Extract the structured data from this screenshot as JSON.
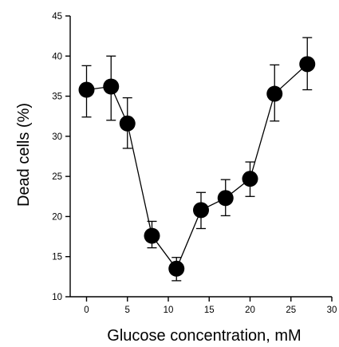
{
  "chart_data": {
    "type": "scatter",
    "title": "",
    "xlabel": "Glucose concentration, mM",
    "ylabel": "Dead cells (%)",
    "xlim": [
      -2,
      30
    ],
    "ylim": [
      10,
      45
    ],
    "xticks": [
      0,
      5,
      10,
      15,
      20,
      25,
      30
    ],
    "yticks": [
      10,
      15,
      20,
      25,
      30,
      35,
      40,
      45
    ],
    "grid": false,
    "legend": "none",
    "style": {
      "marker": "filled-circle",
      "line": "solid",
      "color": "#000000",
      "error_bars": true
    },
    "series": [
      {
        "x": [
          0,
          3,
          5,
          8,
          11,
          14,
          17,
          20,
          23,
          27
        ],
        "y": [
          35.8,
          36.2,
          31.6,
          17.6,
          13.5,
          20.8,
          22.3,
          24.7,
          35.3,
          39.0
        ],
        "yerr_low": [
          3.4,
          4.2,
          3.1,
          1.5,
          1.5,
          2.3,
          2.2,
          2.2,
          3.4,
          3.2
        ],
        "yerr_high": [
          3.0,
          3.8,
          3.2,
          1.8,
          1.4,
          2.2,
          2.3,
          2.1,
          3.6,
          3.3
        ]
      }
    ]
  }
}
